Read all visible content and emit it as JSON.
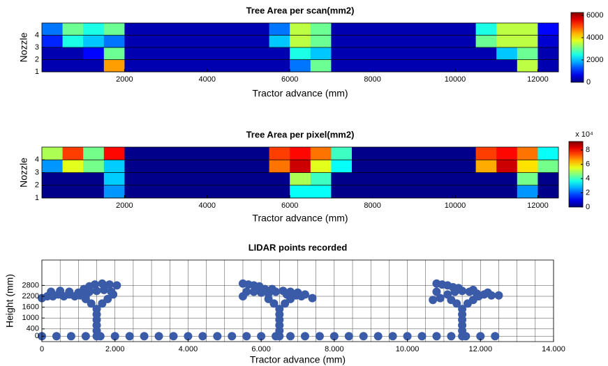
{
  "chart_data": [
    {
      "type": "heatmap",
      "title": "Tree Area per scan(mm2)",
      "xlabel": "Tractor advance (mm)",
      "ylabel": "Nozzle",
      "xlim": [
        0,
        12500
      ],
      "xticks": [
        2000,
        4000,
        6000,
        8000,
        10000,
        12000
      ],
      "ylim": [
        1,
        5
      ],
      "yticks": [
        1,
        2,
        3,
        4
      ],
      "grid": true,
      "bins": [
        0,
        500,
        1000,
        1500,
        2000,
        2500,
        3000,
        3500,
        4000,
        4500,
        5000,
        5500,
        6000,
        6500,
        7000,
        7500,
        8000,
        8500,
        9000,
        9500,
        10000,
        10500,
        11000,
        11500,
        12000,
        12500
      ],
      "z": [
        [
          300,
          300,
          300,
          4500,
          300,
          300,
          300,
          300,
          300,
          300,
          300,
          300,
          1500,
          3000,
          300,
          300,
          300,
          300,
          300,
          300,
          300,
          300,
          300,
          3500,
          300
        ],
        [
          300,
          300,
          800,
          3000,
          300,
          300,
          300,
          300,
          300,
          300,
          300,
          300,
          2500,
          2000,
          300,
          300,
          300,
          300,
          300,
          300,
          300,
          300,
          2000,
          3000,
          300
        ],
        [
          1000,
          2500,
          2000,
          1500,
          300,
          300,
          300,
          300,
          300,
          300,
          300,
          2000,
          3500,
          3000,
          300,
          300,
          300,
          300,
          300,
          300,
          300,
          3000,
          3500,
          3500,
          500
        ],
        [
          1500,
          3000,
          2500,
          3000,
          300,
          300,
          300,
          300,
          300,
          300,
          300,
          1500,
          3500,
          3000,
          300,
          300,
          300,
          300,
          300,
          300,
          300,
          2500,
          3500,
          3500,
          800
        ]
      ],
      "clim": [
        0,
        6250
      ],
      "cticks": [
        0,
        2000,
        4000,
        6000
      ],
      "colormap": "jet"
    },
    {
      "type": "heatmap",
      "title": "Tree Area per pixel(mm2)",
      "xlabel": "Tractor advance (mm)",
      "ylabel": "Nozzle",
      "xlim": [
        0,
        12500
      ],
      "xticks": [
        2000,
        4000,
        6000,
        8000,
        10000,
        12000
      ],
      "ylim": [
        1,
        5
      ],
      "yticks": [
        1,
        2,
        3,
        4
      ],
      "grid": true,
      "bins": [
        0,
        500,
        1000,
        1500,
        2000,
        2500,
        3000,
        3500,
        4000,
        4500,
        5000,
        5500,
        6000,
        6500,
        7000,
        7500,
        8000,
        8500,
        9000,
        9500,
        10000,
        10500,
        11000,
        11500,
        12000,
        12500
      ],
      "z": [
        [
          1000,
          1000,
          1000,
          25000,
          1000,
          1000,
          1000,
          1000,
          1000,
          1000,
          1000,
          1000,
          35000,
          35000,
          1000,
          1000,
          1000,
          1000,
          1000,
          1000,
          1000,
          1000,
          1000,
          25000,
          1000
        ],
        [
          1000,
          1000,
          1000,
          30000,
          1000,
          1000,
          1000,
          1000,
          1000,
          1000,
          1000,
          1000,
          50000,
          40000,
          1000,
          1000,
          1000,
          1000,
          1000,
          1000,
          1000,
          1000,
          1000,
          45000,
          1000
        ],
        [
          25000,
          55000,
          45000,
          30000,
          1000,
          1000,
          1000,
          1000,
          1000,
          1000,
          1000,
          70000,
          85000,
          55000,
          35000,
          1000,
          1000,
          1000,
          1000,
          1000,
          1000,
          65000,
          85000,
          60000,
          45000
        ],
        [
          50000,
          75000,
          45000,
          80000,
          1000,
          1000,
          1000,
          1000,
          1000,
          1000,
          1000,
          75000,
          80000,
          70000,
          40000,
          1000,
          1000,
          1000,
          1000,
          1000,
          1000,
          75000,
          80000,
          70000,
          35000
        ]
      ],
      "clim": [
        0,
        92000
      ],
      "cticks": [
        {
          "value": 0,
          "label": "0"
        },
        {
          "value": 20000,
          "label": "2"
        },
        {
          "value": 40000,
          "label": "4"
        },
        {
          "value": 60000,
          "label": "6"
        },
        {
          "value": 80000,
          "label": "8"
        }
      ],
      "cscale_label": "x 10⁴",
      "colormap": "jet"
    },
    {
      "type": "scatter",
      "title": "LIDAR points recorded",
      "xlabel": "Tractor advance (mm)",
      "ylabel": "Height (mm)",
      "xlim": [
        0,
        14000
      ],
      "xticks": [
        0,
        {
          "value": 2000,
          "label": "2.000"
        },
        {
          "value": 4000,
          "label": "4.000"
        },
        {
          "value": 6000,
          "label": "6.000"
        },
        {
          "value": 8000,
          "label": "8.000"
        },
        {
          "value": 10000,
          "label": "10.000"
        },
        {
          "value": 12000,
          "label": "12.000"
        },
        {
          "value": 14000,
          "label": "14.000"
        }
      ],
      "xgrid": [
        0,
        500,
        1000,
        1500,
        2000,
        2500,
        3000,
        3500,
        4000,
        4500,
        5000,
        5500,
        6000,
        6500,
        7000,
        7500,
        8000,
        8500,
        9000,
        9500,
        10000,
        10500,
        11000,
        11500,
        12000,
        12500,
        13000,
        13500,
        14000
      ],
      "ylim": [
        -300,
        4200
      ],
      "yticks": [
        0,
        400,
        1000,
        1600,
        2200,
        2800
      ],
      "grid": true,
      "series": [
        {
          "color": "#3a5ba8",
          "x": [
            1500,
            1500,
            1500,
            1500,
            1500,
            1500,
            1350,
            1200,
            1050,
            1650,
            1800,
            1950,
            0,
            150,
            300,
            450,
            600,
            750,
            900,
            250,
            500,
            750,
            1000,
            1150,
            1300,
            1450,
            1650,
            1850,
            2050,
            1300,
            1500,
            1700,
            1900,
            1200
          ],
          "values": [
            0,
            300,
            600,
            900,
            1200,
            1500,
            1800,
            2050,
            2250,
            1800,
            2050,
            2300,
            2100,
            2200,
            2200,
            2300,
            2200,
            2300,
            2200,
            2450,
            2500,
            2450,
            2400,
            2600,
            2750,
            2850,
            2900,
            2850,
            2800,
            2450,
            2500,
            2550,
            2450,
            2200
          ]
        },
        {
          "color": "#3a5ba8",
          "x": [
            6500,
            6500,
            6500,
            6500,
            6500,
            6500,
            6350,
            6200,
            6650,
            6800,
            6950,
            5500,
            5650,
            5800,
            5950,
            6100,
            5600,
            5800,
            6000,
            6200,
            6400,
            6600,
            6800,
            7000,
            7200,
            7400,
            5500,
            6300,
            6700,
            7100
          ],
          "values": [
            0,
            300,
            600,
            900,
            1200,
            1500,
            1800,
            2050,
            1800,
            2050,
            2250,
            2900,
            2850,
            2800,
            2750,
            2600,
            2450,
            2450,
            2400,
            2350,
            2450,
            2500,
            2450,
            2400,
            2300,
            2100,
            2200,
            2600,
            2300,
            2200
          ]
        },
        {
          "color": "#3a5ba8",
          "x": [
            11500,
            11500,
            11500,
            11500,
            11500,
            11500,
            11350,
            11200,
            11650,
            11800,
            11950,
            10800,
            10950,
            11100,
            11250,
            10700,
            10900,
            11100,
            11300,
            11500,
            11700,
            11900,
            12100,
            12300,
            12500,
            10800,
            11400,
            11800,
            12200
          ],
          "values": [
            0,
            300,
            600,
            900,
            1200,
            1500,
            1800,
            2000,
            1800,
            2000,
            2200,
            2900,
            2850,
            2800,
            2700,
            2000,
            2100,
            2300,
            2450,
            2500,
            2450,
            2350,
            2300,
            2250,
            2250,
            2450,
            2650,
            2550,
            2400
          ]
        },
        {
          "color": "#3a5ba8",
          "x": [
            0,
            400,
            800,
            1200,
            1600,
            2000,
            2400,
            2800,
            3200,
            3600,
            4000,
            4400,
            4800,
            5200,
            5600,
            6000,
            6400,
            6800,
            7200,
            7600,
            8000,
            8400,
            8800,
            9200,
            9600,
            10000,
            10400,
            10800,
            11200,
            11600,
            12000,
            12400
          ],
          "values": [
            0,
            0,
            0,
            0,
            0,
            0,
            0,
            0,
            0,
            0,
            0,
            0,
            0,
            0,
            0,
            0,
            0,
            0,
            0,
            0,
            0,
            0,
            0,
            0,
            0,
            0,
            0,
            0,
            0,
            0,
            0,
            0
          ]
        }
      ]
    }
  ]
}
